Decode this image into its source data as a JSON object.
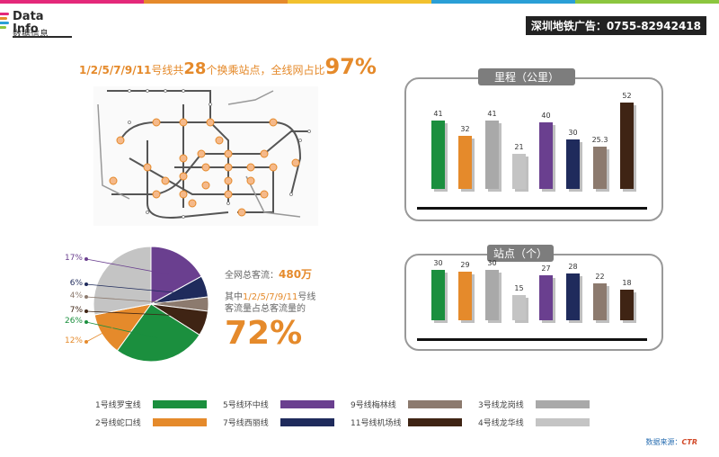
{
  "brand": {
    "title": "Data Info",
    "subtitle": "数据信息"
  },
  "ad": "深圳地铁广告：0755-82942418",
  "headline": {
    "lines": "1/2/5/7/9/11",
    "mid1": "号线共",
    "num": "28",
    "mid2": "个换乘站点，全线网占比",
    "pct": "97%"
  },
  "panel_distance": {
    "title": "里程（公里）"
  },
  "panel_stations": {
    "title": "站点（个）"
  },
  "stats": {
    "total_label": "全网总客流：",
    "total_value": "480万",
    "share_prefix": "其中",
    "share_lines": "1/2/5/7/9/11",
    "share_suffix": "号线",
    "share_line2": "客流量占总客流量的",
    "share_value": "72%"
  },
  "legend": [
    {
      "label": "1号线罗宝线",
      "color": "#1b8f3e"
    },
    {
      "label": "5号线环中线",
      "color": "#6a3f8f"
    },
    {
      "label": "9号线梅林线",
      "color": "#8c7a6e"
    },
    {
      "label": "3号线龙岗线",
      "color": "#a9a9a9"
    },
    {
      "label": "2号线蛇口线",
      "color": "#e58a2b"
    },
    {
      "label": "7号线西丽线",
      "color": "#1f2b5c"
    },
    {
      "label": "11号线机场线",
      "color": "#3f2414"
    },
    {
      "label": "4号线龙华线",
      "color": "#c4c4c4"
    }
  ],
  "source": {
    "prefix": "数据来源：",
    "name": "CTR"
  },
  "chart_data": [
    {
      "type": "bar",
      "title": "里程（公里）",
      "values": [
        41,
        32,
        41,
        21,
        40,
        30,
        25.3,
        52
      ],
      "value_labels": [
        "41",
        "32",
        "41",
        "21",
        "40",
        "30",
        "25.3",
        "52"
      ],
      "colors": [
        "#1b8f3e",
        "#e58a2b",
        "#a9a9a9",
        "#c4c4c4",
        "#6a3f8f",
        "#1f2b5c",
        "#8c7a6e",
        "#3f2414"
      ],
      "ylim": [
        0,
        52
      ]
    },
    {
      "type": "bar",
      "title": "站点（个）",
      "values": [
        30,
        29,
        30,
        15,
        27,
        28,
        22,
        18
      ],
      "value_labels": [
        "30",
        "29",
        "30",
        "15",
        "27",
        "28",
        "22",
        "18"
      ],
      "colors": [
        "#1b8f3e",
        "#e58a2b",
        "#a9a9a9",
        "#c4c4c4",
        "#6a3f8f",
        "#1f2b5c",
        "#8c7a6e",
        "#3f2414"
      ],
      "ylim": [
        0,
        30
      ]
    },
    {
      "type": "pie",
      "slices": [
        {
          "label": "17%",
          "value": 17,
          "color": "#6a3f8f",
          "label_color": "#6a3f8f"
        },
        {
          "label": "6%",
          "value": 6,
          "color": "#1f2b5c",
          "label_color": "#1f2b5c"
        },
        {
          "label": "4%",
          "value": 4,
          "color": "#8c7a6e",
          "label_color": "#8c7a6e"
        },
        {
          "label": "7%",
          "value": 7,
          "color": "#3f2414",
          "label_color": "#3f2414"
        },
        {
          "label": "26%",
          "value": 26,
          "color": "#1b8f3e",
          "label_color": "#1b8f3e"
        },
        {
          "label": "12%",
          "value": 12,
          "color": "#e58a2b",
          "label_color": "#e58a2b"
        },
        {
          "label": "",
          "value": 28,
          "color": "#c4c4c4",
          "label_color": "#c4c4c4"
        }
      ]
    }
  ],
  "colors": {
    "accent": "#e58a2b",
    "topbar": [
      "#e4287a",
      "#e58a2b",
      "#f2c12e",
      "#2a9fd6",
      "#8cc63f"
    ]
  }
}
